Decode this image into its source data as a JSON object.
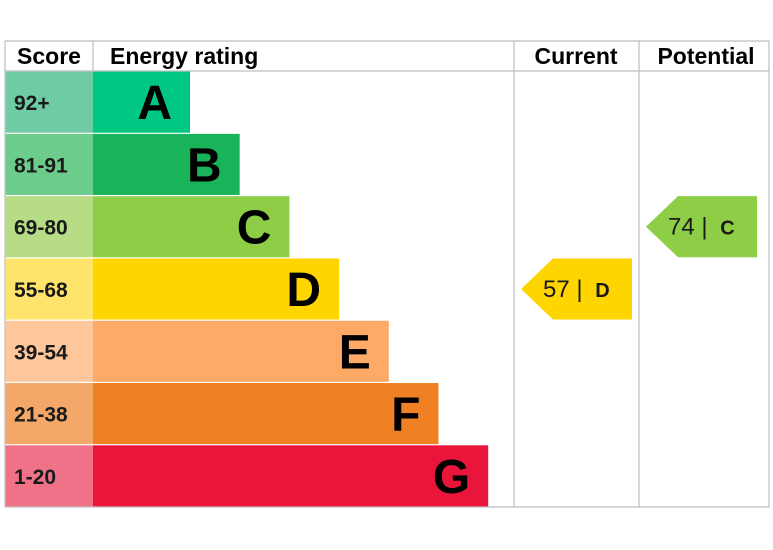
{
  "chart_data": {
    "type": "table",
    "headers": {
      "score": "Score",
      "rating": "Energy rating",
      "current": "Current",
      "potential": "Potential"
    },
    "bands": [
      {
        "letter": "A",
        "range": "92+",
        "color": "#00c781",
        "range_bg": "#6fcba3"
      },
      {
        "letter": "B",
        "range": "81-91",
        "color": "#19b459",
        "range_bg": "#6ccc8b"
      },
      {
        "letter": "C",
        "range": "69-80",
        "color": "#8dce46",
        "range_bg": "#b6dd85"
      },
      {
        "letter": "D",
        "range": "55-68",
        "color": "#ffd500",
        "range_bg": "#fee46a"
      },
      {
        "letter": "E",
        "range": "39-54",
        "color": "#fcaa65",
        "range_bg": "#fdc69b"
      },
      {
        "letter": "F",
        "range": "21-38",
        "color": "#ef8023",
        "range_bg": "#f3a869"
      },
      {
        "letter": "G",
        "range": "1-20",
        "color": "#e9153b",
        "range_bg": "#f07289"
      }
    ],
    "current": {
      "value": 57,
      "letter": "D",
      "color": "#ffd500"
    },
    "potential": {
      "value": 74,
      "letter": "C",
      "color": "#8dce46"
    }
  }
}
